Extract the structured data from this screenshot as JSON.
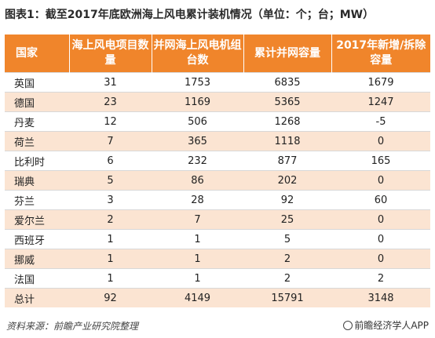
{
  "title": "图表1：截至2017年底欧洲海上风电累计装机情况（单位：个；台；MW）",
  "headers": [
    "国家",
    "海上风电项目数量",
    "并网海上风电机组台数",
    "累计并网容量",
    "2017年新增/拆除容量"
  ],
  "rows": [
    [
      "英国",
      "31",
      "1753",
      "6835",
      "1679"
    ],
    [
      "德国",
      "23",
      "1169",
      "5365",
      "1247"
    ],
    [
      "丹麦",
      "12",
      "506",
      "1268",
      "-5"
    ],
    [
      "荷兰",
      "7",
      "365",
      "1118",
      "0"
    ],
    [
      "比利时",
      "6",
      "232",
      "877",
      "165"
    ],
    [
      "瑞典",
      "5",
      "86",
      "202",
      "0"
    ],
    [
      "芬兰",
      "3",
      "28",
      "92",
      "60"
    ],
    [
      "爱尔兰",
      "2",
      "7",
      "25",
      "0"
    ],
    [
      "西班牙",
      "1",
      "1",
      "5",
      "0"
    ],
    [
      "挪威",
      "1",
      "1",
      "2",
      "0"
    ],
    [
      "法国",
      "1",
      "1",
      "2",
      "2"
    ],
    [
      "总计",
      "92",
      "4149",
      "15791",
      "3148"
    ]
  ],
  "watermark": "前瞻产业研究院",
  "footer": {
    "source": "资料来源：前瞻产业研究院整理",
    "brand": "前瞻经济学人APP",
    "brand_icon": "circle-logo-icon"
  },
  "colors": {
    "header_bg": "#f0852b",
    "stripe_bg": "#fbe4d2"
  }
}
